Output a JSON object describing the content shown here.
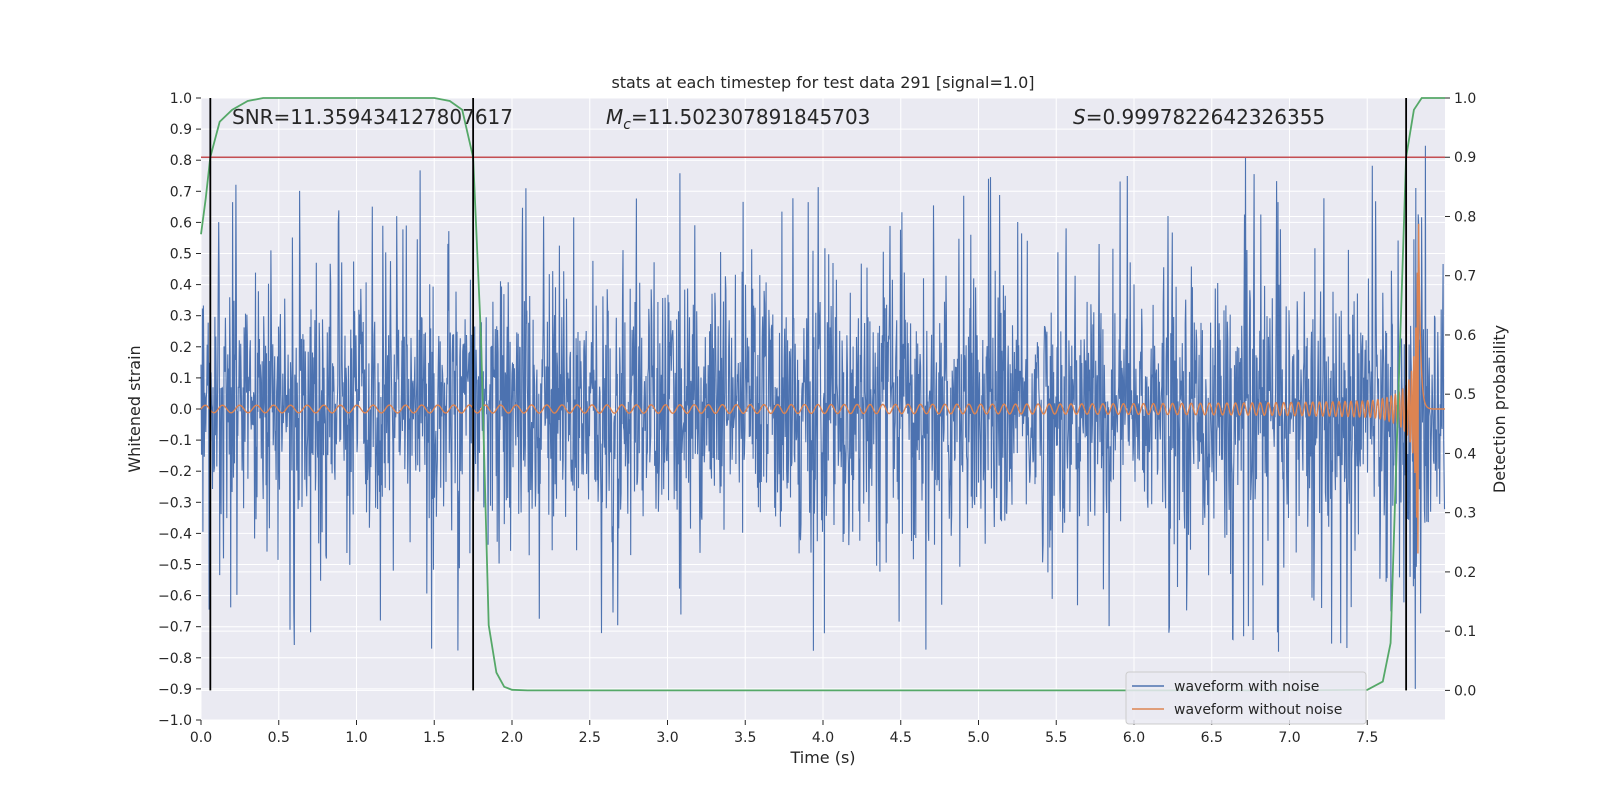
{
  "chart_data": {
    "type": "line",
    "title": "stats at each timestep for test data 291 [signal=1.0]",
    "xlabel": "Time (s)",
    "ylabel_left": "Whitened strain",
    "ylabel_right": "Detection probability",
    "xlim": [
      0.0,
      8.0
    ],
    "ylim_left": [
      -1.0,
      1.0
    ],
    "ylim_right": [
      -0.05,
      1.0
    ],
    "x_ticks": [
      "0.0",
      "0.5",
      "1.0",
      "1.5",
      "2.0",
      "2.5",
      "3.0",
      "3.5",
      "4.0",
      "4.5",
      "5.0",
      "5.5",
      "6.0",
      "6.5",
      "7.0",
      "7.5"
    ],
    "y_ticks_left": [
      "1.0",
      "0.9",
      "0.8",
      "0.7",
      "0.6",
      "0.5",
      "0.4",
      "0.3",
      "0.2",
      "0.1",
      "0.0",
      "−0.1",
      "−0.2",
      "−0.3",
      "−0.4",
      "−0.5",
      "−0.6",
      "−0.7",
      "−0.8",
      "−0.9",
      "−1.0"
    ],
    "y_ticks_right": [
      "1.0",
      "0.9",
      "0.8",
      "0.7",
      "0.6",
      "0.5",
      "0.4",
      "0.3",
      "0.2",
      "0.1",
      "0.0"
    ],
    "grid": true,
    "legend_position": "lower-right",
    "annotations": {
      "snr": "SNR=11.359434127807617",
      "mc_symbol": "M",
      "mc_sub": "c",
      "mc_value": "=11.502307891845703",
      "s_symbol": "S",
      "s_value": "=0.9997822642326355"
    },
    "threshold_right": 0.9,
    "event_lines_x": [
      0.06,
      1.75,
      7.75
    ],
    "series": [
      {
        "name": "waveform with noise",
        "color": "#4c72b0",
        "envelope": {
          "x": [
            0.0,
            1.0,
            2.0,
            3.0,
            4.0,
            5.0,
            6.0,
            6.5,
            7.0,
            7.3,
            7.5,
            7.7,
            7.8,
            7.88,
            8.0
          ],
          "typical_amplitude": [
            0.42,
            0.42,
            0.42,
            0.42,
            0.42,
            0.42,
            0.42,
            0.42,
            0.42,
            0.42,
            0.42,
            0.46,
            0.55,
            0.5,
            0.42
          ],
          "peak_max": 1.0,
          "peak_min": -0.9
        }
      },
      {
        "name": "waveform without noise",
        "color": "#dd8452",
        "chirp": {
          "start_time": 0.0,
          "merger_time": 7.83,
          "end_time": 7.92,
          "start_amplitude": 0.012,
          "peak_amplitude": 0.62,
          "peak_min": -0.44
        }
      },
      {
        "name": "detection probability",
        "color": "#55a868",
        "axis": "right",
        "x": [
          0.0,
          0.03,
          0.06,
          0.12,
          0.2,
          0.3,
          0.4,
          0.5,
          0.6,
          0.8,
          1.0,
          1.2,
          1.4,
          1.5,
          1.6,
          1.68,
          1.75,
          1.8,
          1.85,
          1.9,
          1.95,
          2.0,
          2.1,
          2.5,
          3.0,
          4.0,
          5.0,
          6.0,
          7.0,
          7.5,
          7.6,
          7.65,
          7.7,
          7.75,
          7.8,
          7.85,
          7.9,
          8.0
        ],
        "y": [
          0.77,
          0.83,
          0.9,
          0.96,
          0.98,
          0.995,
          1.0,
          1.0,
          1.0,
          1.0,
          1.0,
          1.0,
          1.0,
          1.0,
          0.995,
          0.98,
          0.9,
          0.6,
          0.11,
          0.03,
          0.006,
          0.001,
          0.0,
          0.0,
          0.0,
          0.0,
          0.0,
          0.0,
          0.0,
          0.001,
          0.015,
          0.08,
          0.5,
          0.9,
          0.98,
          1.0,
          1.0,
          1.0
        ]
      },
      {
        "name": "threshold",
        "color": "#c44e52",
        "axis": "right",
        "y_const": 0.9
      }
    ]
  }
}
